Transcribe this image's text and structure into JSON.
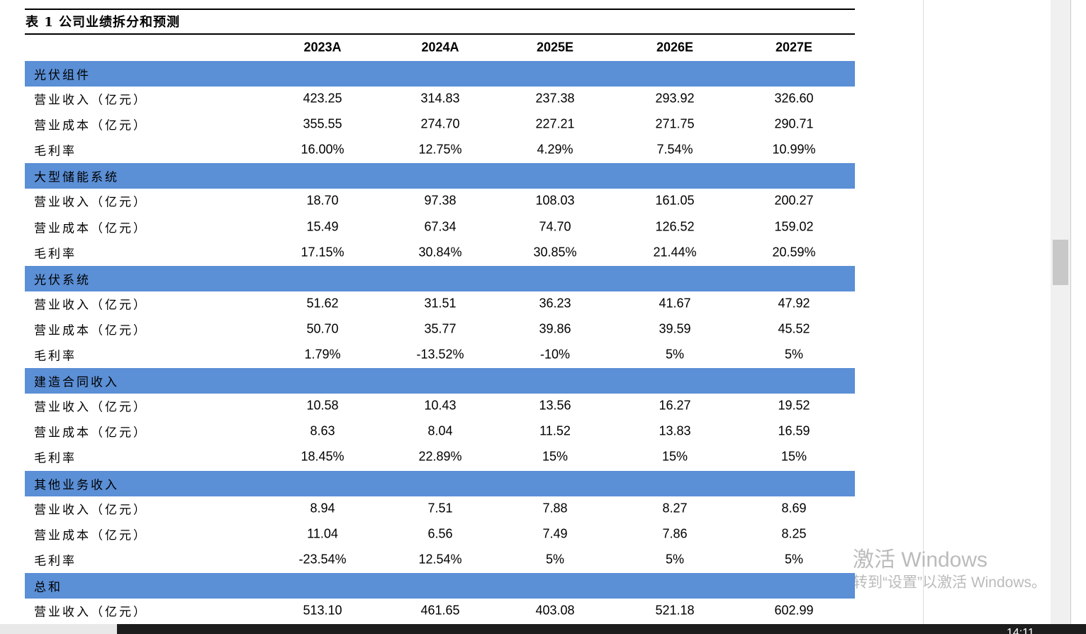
{
  "title": "表 1 公司业绩拆分和预测",
  "columns": [
    "2023A",
    "2024A",
    "2025E",
    "2026E",
    "2027E"
  ],
  "sections": [
    {
      "name": "光伏组件",
      "rows": [
        {
          "label": "营业收入（亿元）",
          "values": [
            "423.25",
            "314.83",
            "237.38",
            "293.92",
            "326.60"
          ]
        },
        {
          "label": "营业成本（亿元）",
          "values": [
            "355.55",
            "274.70",
            "227.21",
            "271.75",
            "290.71"
          ]
        },
        {
          "label": "毛利率",
          "values": [
            "16.00%",
            "12.75%",
            "4.29%",
            "7.54%",
            "10.99%"
          ]
        }
      ]
    },
    {
      "name": "大型储能系统",
      "rows": [
        {
          "label": "营业收入（亿元）",
          "values": [
            "18.70",
            "97.38",
            "108.03",
            "161.05",
            "200.27"
          ]
        },
        {
          "label": "营业成本（亿元）",
          "values": [
            "15.49",
            "67.34",
            "74.70",
            "126.52",
            "159.02"
          ]
        },
        {
          "label": "毛利率",
          "values": [
            "17.15%",
            "30.84%",
            "30.85%",
            "21.44%",
            "20.59%"
          ]
        }
      ]
    },
    {
      "name": "光伏系统",
      "rows": [
        {
          "label": "营业收入（亿元）",
          "values": [
            "51.62",
            "31.51",
            "36.23",
            "41.67",
            "47.92"
          ]
        },
        {
          "label": "营业成本（亿元）",
          "values": [
            "50.70",
            "35.77",
            "39.86",
            "39.59",
            "45.52"
          ]
        },
        {
          "label": "毛利率",
          "values": [
            "1.79%",
            "-13.52%",
            "-10%",
            "5%",
            "5%"
          ]
        }
      ]
    },
    {
      "name": "建造合同收入",
      "rows": [
        {
          "label": "营业收入（亿元）",
          "values": [
            "10.58",
            "10.43",
            "13.56",
            "16.27",
            "19.52"
          ]
        },
        {
          "label": "营业成本（亿元）",
          "values": [
            "8.63",
            "8.04",
            "11.52",
            "13.83",
            "16.59"
          ]
        },
        {
          "label": "毛利率",
          "values": [
            "18.45%",
            "22.89%",
            "15%",
            "15%",
            "15%"
          ]
        }
      ]
    },
    {
      "name": "其他业务收入",
      "rows": [
        {
          "label": "营业收入（亿元）",
          "values": [
            "8.94",
            "7.51",
            "7.88",
            "8.27",
            "8.69"
          ]
        },
        {
          "label": "营业成本（亿元）",
          "values": [
            "11.04",
            "6.56",
            "7.49",
            "7.86",
            "8.25"
          ]
        },
        {
          "label": "毛利率",
          "values": [
            "-23.54%",
            "12.54%",
            "5%",
            "5%",
            "5%"
          ]
        }
      ]
    },
    {
      "name": "总和",
      "rows": [
        {
          "label": "营业收入（亿元）",
          "values": [
            "513.10",
            "461.65",
            "403.08",
            "521.18",
            "602.99"
          ]
        }
      ]
    }
  ],
  "watermark": {
    "line1": "激活 Windows",
    "line2": "转到“设置”以激活 Windows。"
  },
  "clock": "14:11"
}
